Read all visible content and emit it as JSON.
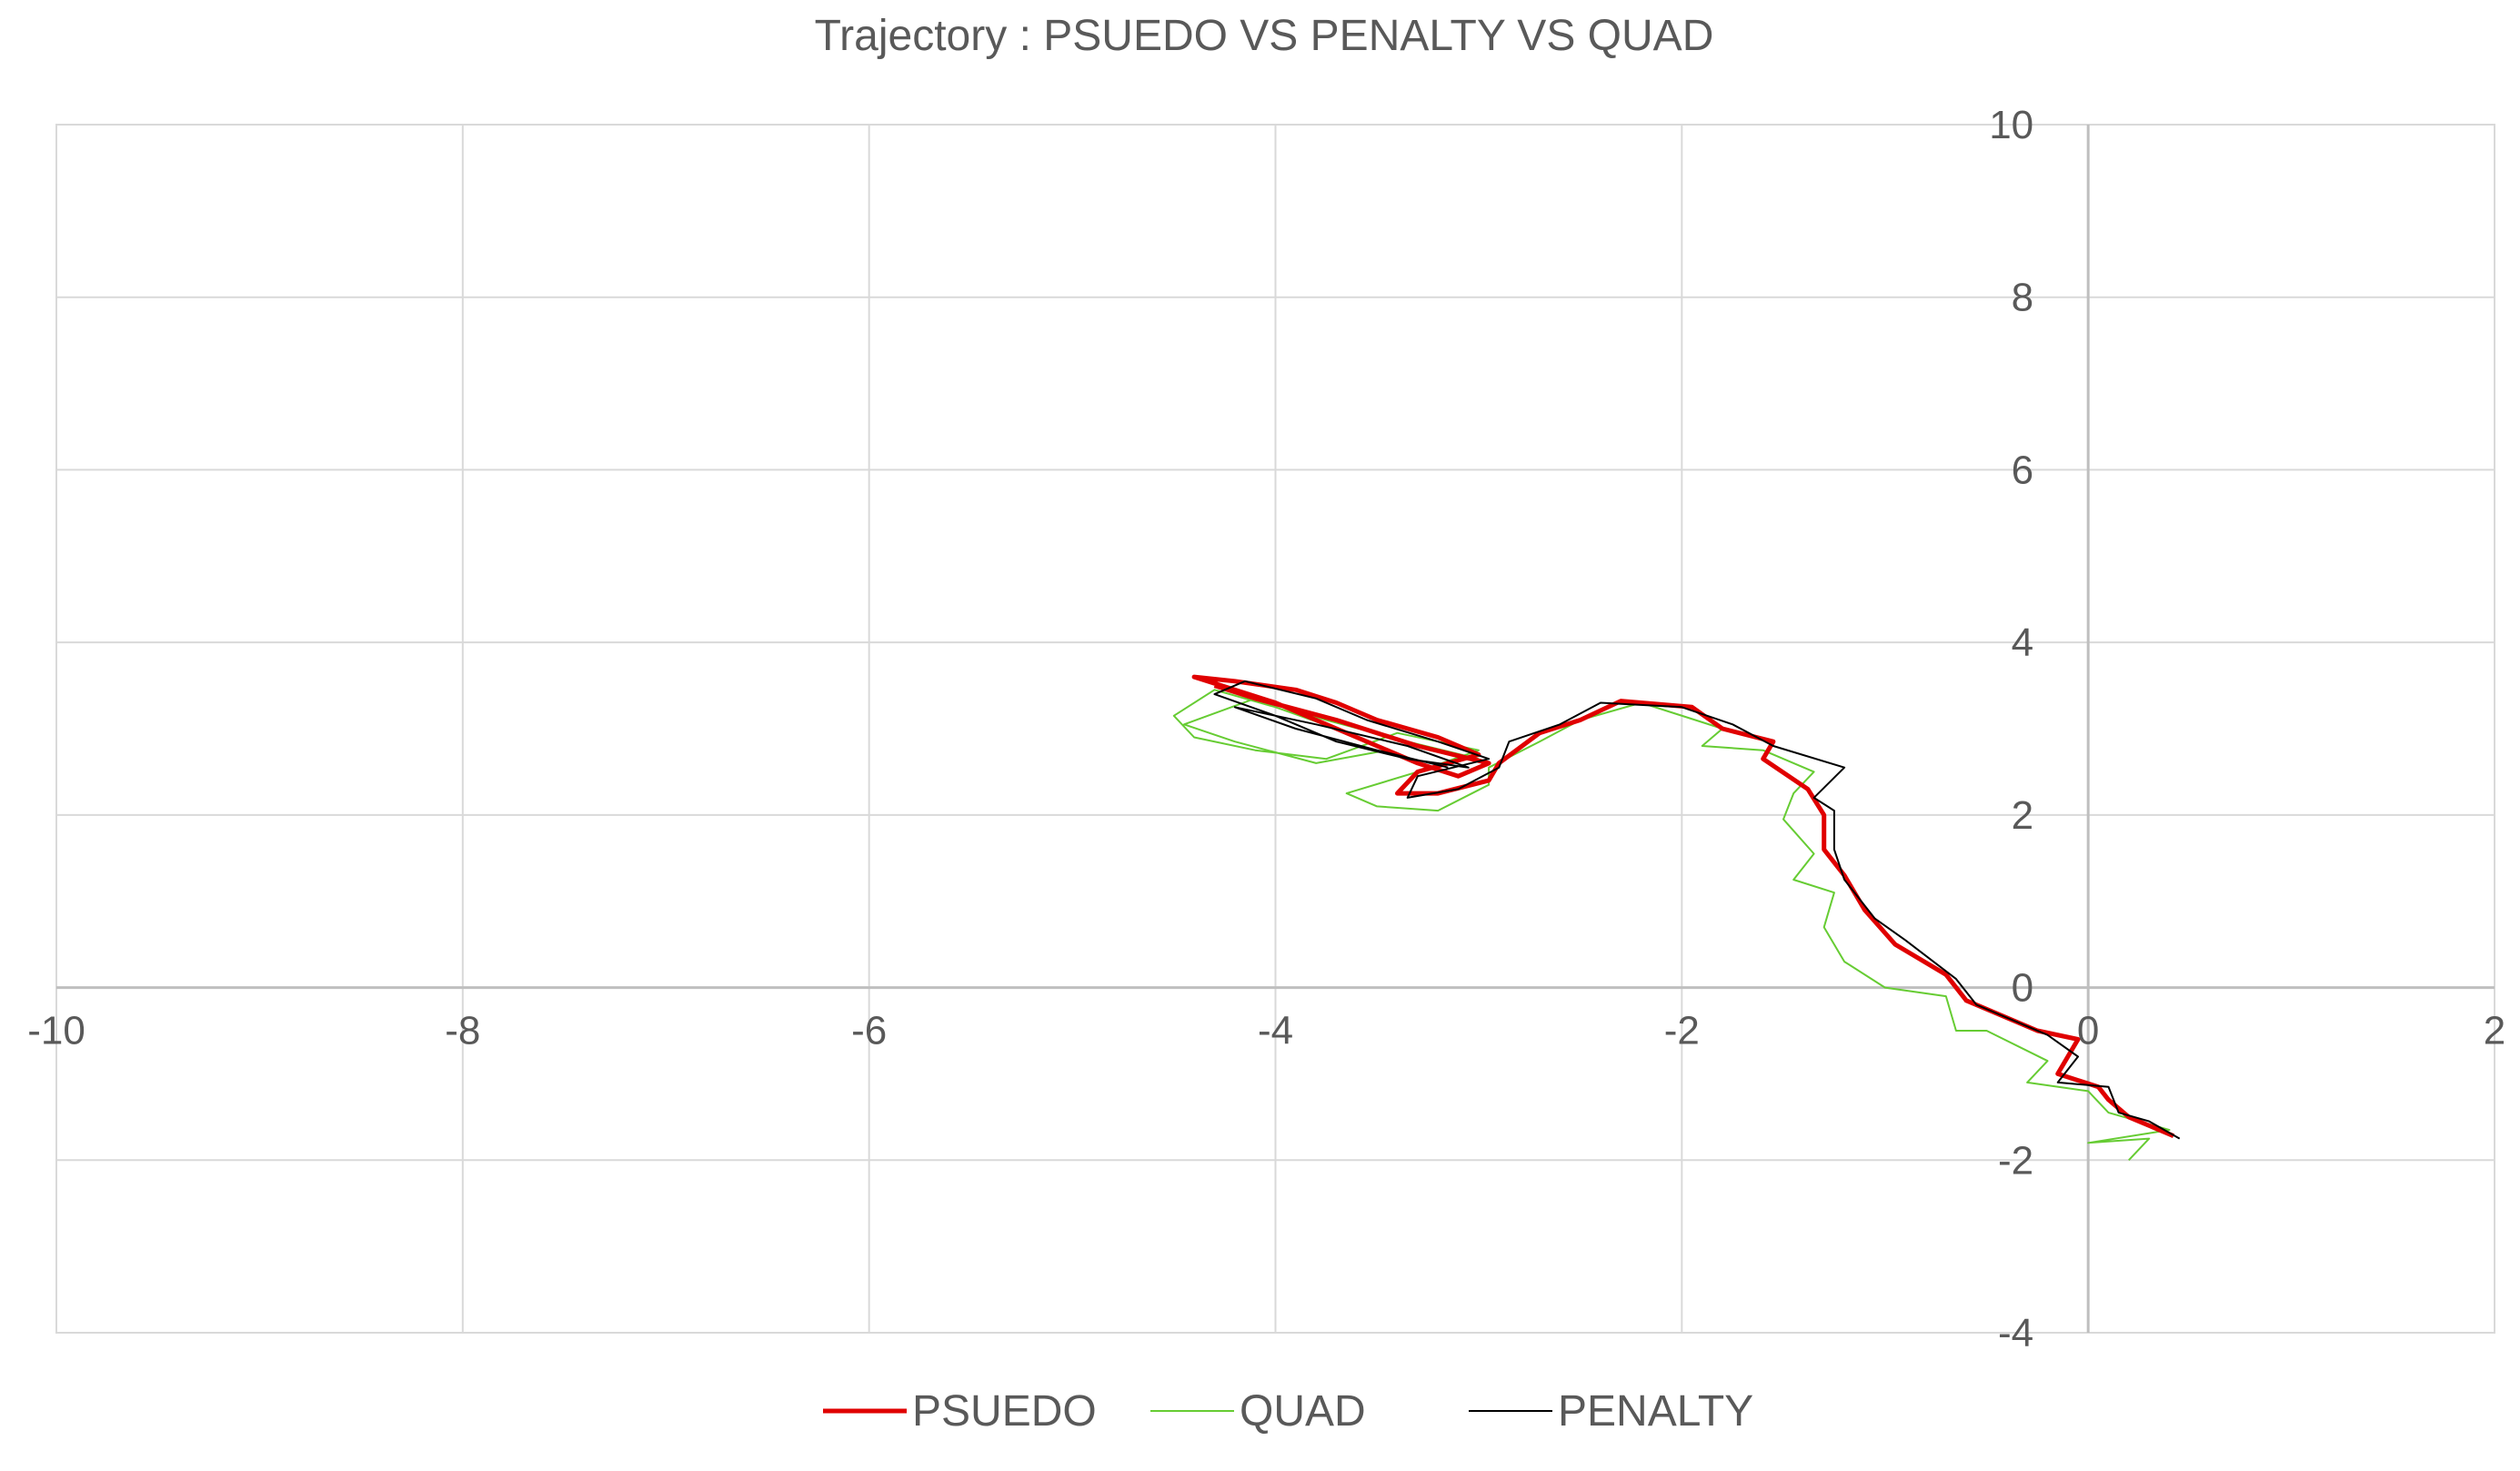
{
  "chart_data": {
    "type": "scatter",
    "title": "Trajectory : PSUEDO VS PENALTY VS QUAD",
    "xlabel": "",
    "ylabel": "",
    "xlim": [
      -10,
      2
    ],
    "ylim": [
      -4,
      10
    ],
    "x_ticks": [
      -10,
      -8,
      -6,
      -4,
      -2,
      0,
      2
    ],
    "y_ticks": [
      -4,
      -2,
      0,
      2,
      4,
      6,
      8,
      10
    ],
    "x_tick_labels": [
      "-10",
      "-8",
      "-6",
      "-4",
      "-2",
      "0",
      "2"
    ],
    "y_tick_labels": [
      "-4",
      "-2",
      "0",
      "2",
      "4",
      "6",
      "8",
      "10"
    ],
    "grid": true,
    "legend_position": "bottom",
    "series": [
      {
        "name": "PSUEDO",
        "color": "#e00000",
        "points": [
          [
            0.42,
            -1.72
          ],
          [
            0.3,
            -1.6
          ],
          [
            0.2,
            -1.5
          ],
          [
            0.1,
            -1.3
          ],
          [
            0.05,
            -1.15
          ],
          [
            -0.15,
            -1.0
          ],
          [
            -0.05,
            -0.6
          ],
          [
            -0.25,
            -0.5
          ],
          [
            -0.6,
            -0.15
          ],
          [
            -0.7,
            0.15
          ],
          [
            -0.95,
            0.5
          ],
          [
            -1.1,
            0.9
          ],
          [
            -1.2,
            1.3
          ],
          [
            -1.3,
            1.6
          ],
          [
            -1.3,
            2.0
          ],
          [
            -1.38,
            2.3
          ],
          [
            -1.6,
            2.65
          ],
          [
            -1.55,
            2.85
          ],
          [
            -1.8,
            3.0
          ],
          [
            -1.95,
            3.25
          ],
          [
            -2.3,
            3.32
          ],
          [
            -2.5,
            3.1
          ],
          [
            -2.7,
            2.95
          ],
          [
            -2.9,
            2.6
          ],
          [
            -2.95,
            2.4
          ],
          [
            -3.2,
            2.25
          ],
          [
            -3.4,
            2.25
          ],
          [
            -3.3,
            2.5
          ],
          [
            -3.0,
            2.7
          ],
          [
            -3.2,
            2.9
          ],
          [
            -3.5,
            3.1
          ],
          [
            -3.7,
            3.3
          ],
          [
            -3.9,
            3.45
          ],
          [
            -4.2,
            3.55
          ],
          [
            -4.4,
            3.6
          ],
          [
            -4.0,
            3.3
          ],
          [
            -3.6,
            2.9
          ],
          [
            -3.3,
            2.6
          ],
          [
            -3.1,
            2.45
          ],
          [
            -2.95,
            2.6
          ],
          [
            -3.3,
            2.8
          ],
          [
            -3.7,
            3.1
          ],
          [
            -4.1,
            3.35
          ],
          [
            -4.3,
            3.5
          ]
        ]
      },
      {
        "name": "QUAD",
        "color": "#66cc33",
        "points": [
          [
            0.2,
            -2.0
          ],
          [
            0.3,
            -1.75
          ],
          [
            0.0,
            -1.8
          ],
          [
            0.4,
            -1.65
          ],
          [
            0.1,
            -1.45
          ],
          [
            0.0,
            -1.2
          ],
          [
            -0.3,
            -1.1
          ],
          [
            -0.2,
            -0.85
          ],
          [
            -0.5,
            -0.5
          ],
          [
            -0.65,
            -0.5
          ],
          [
            -0.7,
            -0.1
          ],
          [
            -1.0,
            0.0
          ],
          [
            -1.2,
            0.3
          ],
          [
            -1.3,
            0.7
          ],
          [
            -1.25,
            1.1
          ],
          [
            -1.45,
            1.25
          ],
          [
            -1.35,
            1.55
          ],
          [
            -1.5,
            1.95
          ],
          [
            -1.45,
            2.25
          ],
          [
            -1.35,
            2.5
          ],
          [
            -1.6,
            2.75
          ],
          [
            -1.9,
            2.8
          ],
          [
            -1.8,
            3.0
          ],
          [
            -2.2,
            3.3
          ],
          [
            -2.5,
            3.1
          ],
          [
            -2.7,
            2.85
          ],
          [
            -2.95,
            2.55
          ],
          [
            -2.95,
            2.35
          ],
          [
            -3.2,
            2.05
          ],
          [
            -3.5,
            2.1
          ],
          [
            -3.65,
            2.25
          ],
          [
            -3.3,
            2.5
          ],
          [
            -3.0,
            2.75
          ],
          [
            -3.4,
            2.95
          ],
          [
            -3.75,
            2.65
          ],
          [
            -4.1,
            2.75
          ],
          [
            -4.4,
            2.9
          ],
          [
            -4.5,
            3.15
          ],
          [
            -4.3,
            3.45
          ],
          [
            -4.0,
            3.25
          ],
          [
            -3.7,
            3.0
          ],
          [
            -3.45,
            2.75
          ],
          [
            -3.8,
            2.6
          ],
          [
            -4.2,
            2.85
          ],
          [
            -4.45,
            3.05
          ],
          [
            -4.1,
            3.35
          ],
          [
            -3.75,
            3.1
          ],
          [
            -3.35,
            2.85
          ],
          [
            -3.0,
            2.65
          ]
        ]
      },
      {
        "name": "PENALTY",
        "color": "#000000",
        "points": [
          [
            0.45,
            -1.75
          ],
          [
            0.3,
            -1.55
          ],
          [
            0.15,
            -1.45
          ],
          [
            0.1,
            -1.15
          ],
          [
            -0.15,
            -1.1
          ],
          [
            -0.05,
            -0.8
          ],
          [
            -0.2,
            -0.55
          ],
          [
            -0.55,
            -0.2
          ],
          [
            -0.65,
            0.1
          ],
          [
            -0.9,
            0.55
          ],
          [
            -1.05,
            0.8
          ],
          [
            -1.2,
            1.25
          ],
          [
            -1.25,
            1.6
          ],
          [
            -1.25,
            2.05
          ],
          [
            -1.35,
            2.2
          ],
          [
            -1.2,
            2.55
          ],
          [
            -1.55,
            2.8
          ],
          [
            -1.75,
            3.05
          ],
          [
            -2.0,
            3.25
          ],
          [
            -2.4,
            3.3
          ],
          [
            -2.6,
            3.05
          ],
          [
            -2.85,
            2.85
          ],
          [
            -2.9,
            2.55
          ],
          [
            -3.1,
            2.3
          ],
          [
            -3.35,
            2.2
          ],
          [
            -3.3,
            2.45
          ],
          [
            -2.95,
            2.65
          ],
          [
            -3.2,
            2.85
          ],
          [
            -3.55,
            3.1
          ],
          [
            -3.8,
            3.35
          ],
          [
            -4.15,
            3.55
          ],
          [
            -4.3,
            3.4
          ],
          [
            -4.0,
            3.15
          ],
          [
            -3.7,
            2.85
          ],
          [
            -3.35,
            2.65
          ],
          [
            -3.05,
            2.55
          ],
          [
            -3.35,
            2.8
          ],
          [
            -3.8,
            3.05
          ],
          [
            -4.2,
            3.25
          ],
          [
            -3.9,
            3.0
          ],
          [
            -3.5,
            2.75
          ],
          [
            -3.15,
            2.55
          ]
        ]
      }
    ]
  },
  "legend": {
    "items": [
      {
        "label": "PSUEDO",
        "color": "#e00000",
        "stroke_width": 5
      },
      {
        "label": "QUAD",
        "color": "#66cc33",
        "stroke_width": 2
      },
      {
        "label": "PENALTY",
        "color": "#000000",
        "stroke_width": 2
      }
    ]
  },
  "style": {
    "grid_color": "#d9d9d9",
    "axis_color": "#bfbfbf",
    "text_color": "#595959"
  }
}
